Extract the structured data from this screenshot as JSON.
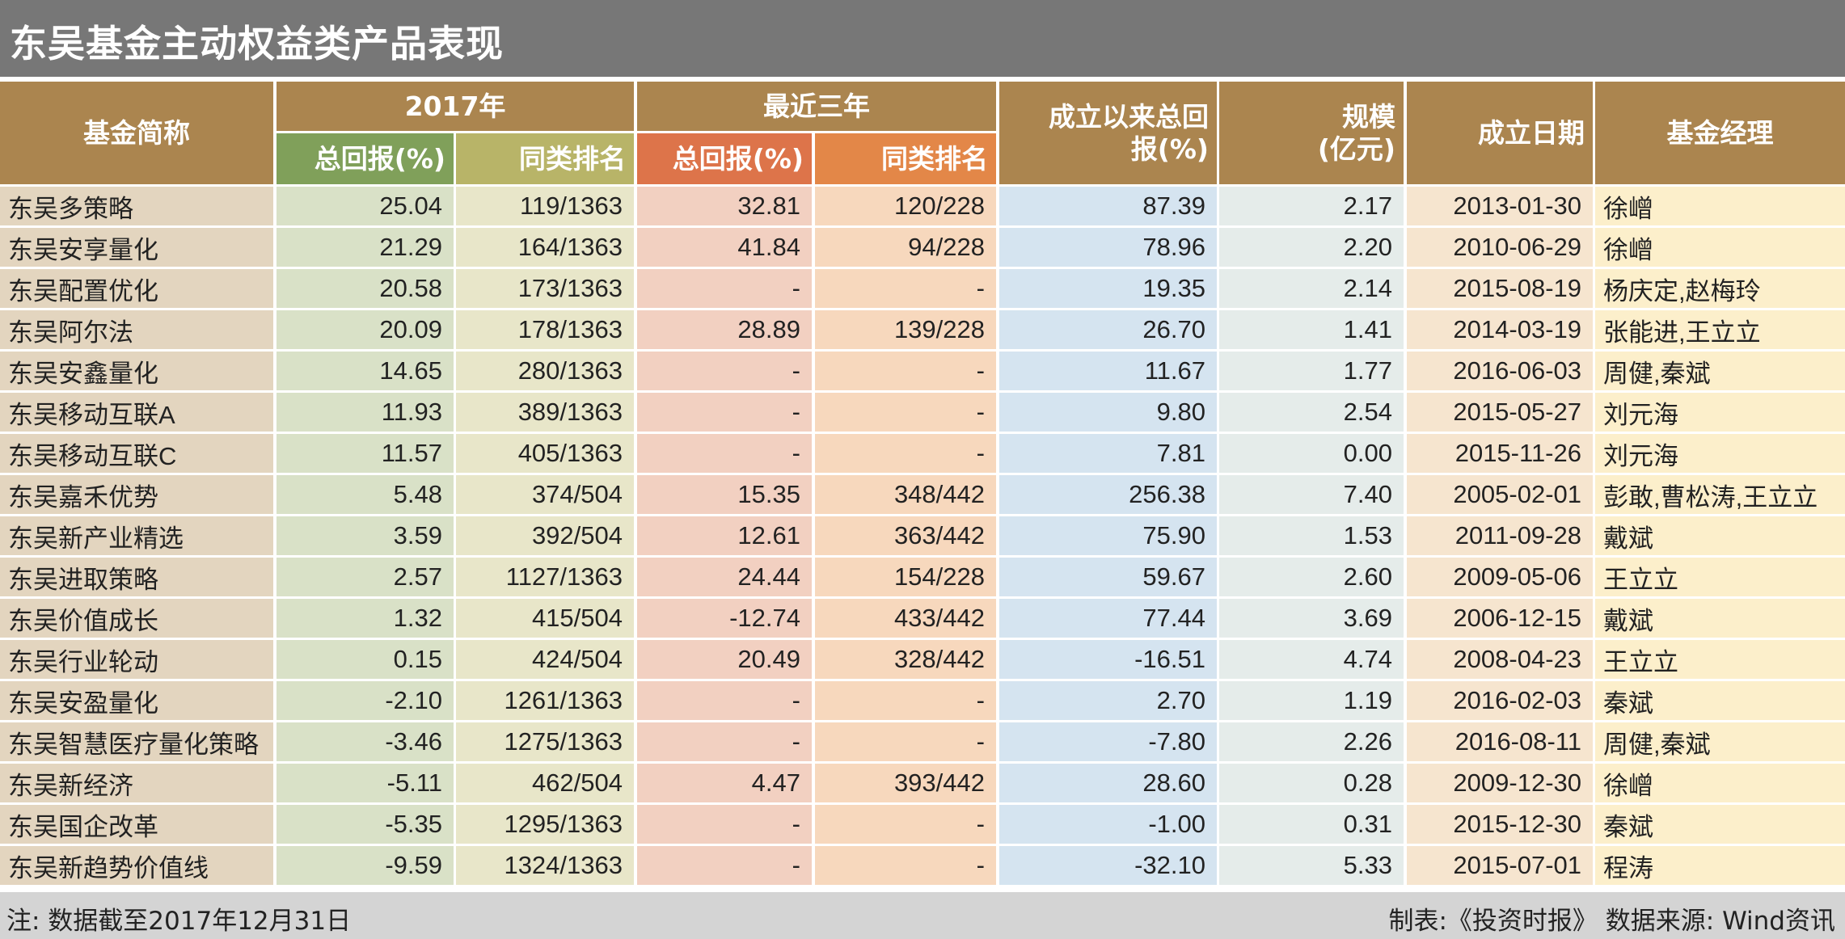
{
  "title": "东吴基金主动权益类产品表现",
  "colors": {
    "title_bar": "#777777",
    "header": "#ab854f",
    "sub_2017_return": "#80a05a",
    "sub_2017_rank": "#b8b468",
    "sub_3y_return": "#dd744a",
    "sub_3y_rank": "#e38748",
    "footer": "#d4d4d4"
  },
  "header": {
    "fund_name": "基金简称",
    "group_2017": "2017年",
    "group_3y": "最近三年",
    "sub_return": "总回报(%)",
    "sub_rank": "同类排名",
    "since_inception_line1": "成立以来总回",
    "since_inception_line2": "报(%)",
    "size_line1": "规模",
    "size_line2": "(亿元)",
    "inception_date": "成立日期",
    "manager": "基金经理"
  },
  "rows": [
    {
      "name": "东吴多策略",
      "ret2017": "25.04",
      "rank2017": "119/1363",
      "ret3y": "32.81",
      "rank3y": "120/228",
      "since": "87.39",
      "size": "2.17",
      "date": "2013-01-30",
      "manager": "徐嶒"
    },
    {
      "name": "东吴安享量化",
      "ret2017": "21.29",
      "rank2017": "164/1363",
      "ret3y": "41.84",
      "rank3y": "94/228",
      "since": "78.96",
      "size": "2.20",
      "date": "2010-06-29",
      "manager": "徐嶒"
    },
    {
      "name": "东吴配置优化",
      "ret2017": "20.58",
      "rank2017": "173/1363",
      "ret3y": "-",
      "rank3y": "-",
      "since": "19.35",
      "size": "2.14",
      "date": "2015-08-19",
      "manager": "杨庆定,赵梅玲"
    },
    {
      "name": "东吴阿尔法",
      "ret2017": "20.09",
      "rank2017": "178/1363",
      "ret3y": "28.89",
      "rank3y": "139/228",
      "since": "26.70",
      "size": "1.41",
      "date": "2014-03-19",
      "manager": "张能进,王立立"
    },
    {
      "name": "东吴安鑫量化",
      "ret2017": "14.65",
      "rank2017": "280/1363",
      "ret3y": "-",
      "rank3y": "-",
      "since": "11.67",
      "size": "1.77",
      "date": "2016-06-03",
      "manager": "周健,秦斌"
    },
    {
      "name": "东吴移动互联A",
      "ret2017": "11.93",
      "rank2017": "389/1363",
      "ret3y": "-",
      "rank3y": "-",
      "since": "9.80",
      "size": "2.54",
      "date": "2015-05-27",
      "manager": "刘元海"
    },
    {
      "name": "东吴移动互联C",
      "ret2017": "11.57",
      "rank2017": "405/1363",
      "ret3y": "-",
      "rank3y": "-",
      "since": "7.81",
      "size": "0.00",
      "date": "2015-11-26",
      "manager": "刘元海"
    },
    {
      "name": "东吴嘉禾优势",
      "ret2017": "5.48",
      "rank2017": "374/504",
      "ret3y": "15.35",
      "rank3y": "348/442",
      "since": "256.38",
      "size": "7.40",
      "date": "2005-02-01",
      "manager": "彭敢,曹松涛,王立立"
    },
    {
      "name": "东吴新产业精选",
      "ret2017": "3.59",
      "rank2017": "392/504",
      "ret3y": "12.61",
      "rank3y": "363/442",
      "since": "75.90",
      "size": "1.53",
      "date": "2011-09-28",
      "manager": "戴斌"
    },
    {
      "name": "东吴进取策略",
      "ret2017": "2.57",
      "rank2017": "1127/1363",
      "ret3y": "24.44",
      "rank3y": "154/228",
      "since": "59.67",
      "size": "2.60",
      "date": "2009-05-06",
      "manager": "王立立"
    },
    {
      "name": "东吴价值成长",
      "ret2017": "1.32",
      "rank2017": "415/504",
      "ret3y": "-12.74",
      "rank3y": "433/442",
      "since": "77.44",
      "size": "3.69",
      "date": "2006-12-15",
      "manager": "戴斌"
    },
    {
      "name": "东吴行业轮动",
      "ret2017": "0.15",
      "rank2017": "424/504",
      "ret3y": "20.49",
      "rank3y": "328/442",
      "since": "-16.51",
      "size": "4.74",
      "date": "2008-04-23",
      "manager": "王立立"
    },
    {
      "name": "东吴安盈量化",
      "ret2017": "-2.10",
      "rank2017": "1261/1363",
      "ret3y": "-",
      "rank3y": "-",
      "since": "2.70",
      "size": "1.19",
      "date": "2016-02-03",
      "manager": "秦斌"
    },
    {
      "name": "东吴智慧医疗量化策略",
      "ret2017": "-3.46",
      "rank2017": "1275/1363",
      "ret3y": "-",
      "rank3y": "-",
      "since": "-7.80",
      "size": "2.26",
      "date": "2016-08-11",
      "manager": "周健,秦斌"
    },
    {
      "name": "东吴新经济",
      "ret2017": "-5.11",
      "rank2017": "462/504",
      "ret3y": "4.47",
      "rank3y": "393/442",
      "since": "28.60",
      "size": "0.28",
      "date": "2009-12-30",
      "manager": "徐嶒"
    },
    {
      "name": "东吴国企改革",
      "ret2017": "-5.35",
      "rank2017": "1295/1363",
      "ret3y": "-",
      "rank3y": "-",
      "since": "-1.00",
      "size": "0.31",
      "date": "2015-12-30",
      "manager": "秦斌"
    },
    {
      "name": "东吴新趋势价值线",
      "ret2017": "-9.59",
      "rank2017": "1324/1363",
      "ret3y": "-",
      "rank3y": "-",
      "since": "-32.10",
      "size": "5.33",
      "date": "2015-07-01",
      "manager": "程涛"
    }
  ],
  "footer": {
    "note": "注: 数据截至2017年12月31日",
    "source": "制表:《投资时报》  数据来源: Wind资讯"
  }
}
